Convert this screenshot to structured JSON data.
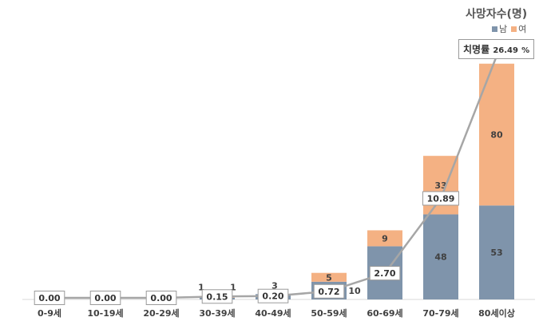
{
  "chart_data": {
    "type": "bar",
    "stacked": true,
    "categories": [
      "0-9세",
      "10-19세",
      "20-29세",
      "30-39세",
      "40-49세",
      "50-59세",
      "60-69세",
      "70-79세",
      "80세이상"
    ],
    "legend_title": "사망자수(명)",
    "legend_position": "top-right",
    "grid": false,
    "series": [
      {
        "name": "남",
        "color": "#7f94ab",
        "values": [
          0,
          0,
          0,
          1,
          3,
          10,
          30,
          48,
          53
        ]
      },
      {
        "name": "여",
        "color": "#f4b183",
        "values": [
          0,
          0,
          0,
          1,
          0,
          5,
          9,
          33,
          80
        ]
      }
    ],
    "value_labels": {
      "남": [
        "",
        "",
        "",
        "1",
        "3",
        "10",
        "30",
        "48",
        "53"
      ],
      "여": [
        "",
        "",
        "",
        "1",
        "",
        "5",
        "9",
        "33",
        "80"
      ]
    },
    "line": {
      "label_prefix": "치명률",
      "label_value": "26.49",
      "label_unit": "%",
      "color": "#a6a6a6",
      "values": [
        0.0,
        0.0,
        0.0,
        0.15,
        0.2,
        0.72,
        2.7,
        10.89,
        26.49
      ],
      "value_labels": [
        "0.00",
        "0.00",
        "0.00",
        "0.15",
        "0.20",
        "0.72",
        "2.70",
        "10.89"
      ]
    },
    "ylim": [
      0,
      136
    ]
  }
}
